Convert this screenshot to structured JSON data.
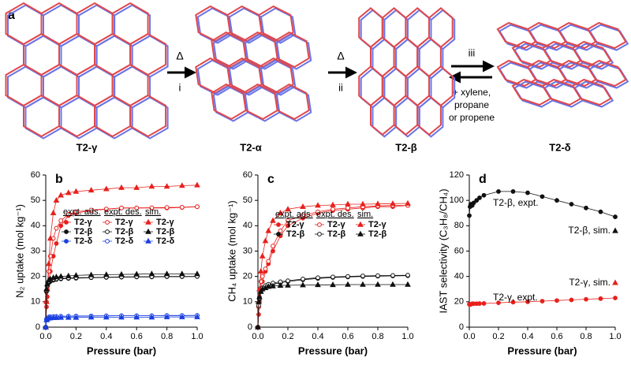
{
  "panel_a": {
    "letter": "a",
    "structures": [
      "T2-γ",
      "T2-α",
      "T2-β",
      "T2-δ"
    ],
    "step1": {
      "condition": "Δ",
      "label": "i"
    },
    "step2": {
      "condition": "Δ",
      "label": "ii"
    },
    "step3": {
      "label": "iii",
      "guests": [
        "+ xylene,",
        "propane",
        "or propene"
      ]
    }
  },
  "chart_data": [
    {
      "type": "line",
      "panel": "b",
      "x_label": "Pressure (bar)",
      "y_label": "N₂ uptake (mol kg⁻¹)",
      "xlim": [
        0,
        1
      ],
      "xticks": [
        {
          "value": 0,
          "label": "0.0"
        },
        0.2,
        0.4,
        0.6,
        0.8,
        {
          "value": 1,
          "label": "1.0"
        }
      ],
      "ylim": [
        0,
        60
      ],
      "yticks": [
        0,
        10,
        20,
        30,
        40,
        50,
        60
      ],
      "legend_headers": [
        "expt. ads.",
        "expt. des.",
        "sim."
      ],
      "x": [
        0,
        0.005,
        0.01,
        0.02,
        0.03,
        0.05,
        0.07,
        0.1,
        0.15,
        0.2,
        0.3,
        0.4,
        0.5,
        0.6,
        0.7,
        0.8,
        0.9,
        1.0
      ],
      "series": [
        {
          "name": "T2-γ",
          "color": "#e8201c",
          "marker": "circle",
          "filled": true,
          "values": [
            0,
            8,
            12,
            18,
            22,
            28,
            33,
            40,
            44,
            45,
            46,
            46.5,
            47,
            47,
            47,
            47,
            47.2,
            47.5
          ]
        },
        {
          "name": "T2-β",
          "color": "#111111",
          "marker": "circle",
          "filled": true,
          "values": [
            0,
            14,
            16,
            17.5,
            18,
            18.5,
            18.8,
            19,
            19.2,
            19.3,
            19.5,
            19.6,
            19.7,
            19.8,
            19.8,
            19.9,
            19.9,
            20
          ]
        },
        {
          "name": "T2-δ",
          "color": "#1a3fe0",
          "marker": "circle",
          "filled": true,
          "values": [
            0,
            3,
            3.5,
            4,
            4,
            4.1,
            4.2,
            4.2,
            4.3,
            4.3,
            4.4,
            4.4,
            4.5,
            4.5,
            4.5,
            4.5,
            4.5,
            4.6
          ]
        },
        {
          "name": "T2-γ",
          "color": "#e8201c",
          "marker": "circle",
          "filled": false,
          "values": [
            0,
            10,
            15,
            22,
            28,
            35,
            39,
            42,
            44.5,
            45.5,
            46.2,
            46.6,
            47,
            47,
            47.1,
            47.2,
            47.3,
            47.5
          ]
        },
        {
          "name": "T2-β",
          "color": "#111111",
          "marker": "circle",
          "filled": false,
          "values": [
            0,
            14.5,
            16.5,
            18,
            18.4,
            18.8,
            19,
            19.2,
            19.4,
            19.5,
            19.6,
            19.7,
            19.8,
            19.9,
            19.9,
            20,
            20,
            20
          ]
        },
        {
          "name": "T2-δ",
          "color": "#1a3fe0",
          "marker": "circle",
          "filled": false,
          "values": [
            0,
            3.2,
            3.6,
            4,
            4.1,
            4.2,
            4.2,
            4.3,
            4.3,
            4.4,
            4.4,
            4.5,
            4.5,
            4.5,
            4.5,
            4.6,
            4.6,
            4.6
          ]
        },
        {
          "name": "T2-γ",
          "color": "#e8201c",
          "marker": "triangle",
          "filled": true,
          "values": [
            0,
            10,
            15,
            25,
            35,
            45,
            50,
            52,
            53,
            53.5,
            54,
            54.5,
            55,
            55,
            55.5,
            55.5,
            55.8,
            56
          ]
        },
        {
          "name": "T2-β",
          "color": "#111111",
          "marker": "triangle",
          "filled": true,
          "values": [
            0,
            15,
            17,
            18.5,
            19,
            19.5,
            19.8,
            20,
            20.2,
            20.4,
            20.6,
            20.7,
            20.8,
            20.9,
            21,
            21,
            21,
            21
          ]
        },
        {
          "name": "T2-δ",
          "color": "#1a3fe0",
          "marker": "triangle",
          "filled": true,
          "values": [
            0,
            2.8,
            3.2,
            3.5,
            3.6,
            3.7,
            3.7,
            3.8,
            3.8,
            3.8,
            3.9,
            3.9,
            3.9,
            3.9,
            3.9,
            4,
            4,
            4
          ]
        }
      ]
    },
    {
      "type": "line",
      "panel": "c",
      "x_label": "Pressure (bar)",
      "y_label": "CH₄ uptake (mol kg⁻¹)",
      "xlim": [
        0,
        1
      ],
      "xticks": [
        {
          "value": 0,
          "label": "0.0"
        },
        0.2,
        0.4,
        0.6,
        0.8,
        {
          "value": 1,
          "label": "1.0"
        }
      ],
      "ylim": [
        0,
        60
      ],
      "yticks": [
        0,
        10,
        20,
        30,
        40,
        50,
        60
      ],
      "legend_headers": [
        "expt. ads.",
        "expt. des.",
        "sim."
      ],
      "x": [
        0,
        0.005,
        0.01,
        0.02,
        0.03,
        0.05,
        0.07,
        0.1,
        0.15,
        0.2,
        0.3,
        0.4,
        0.5,
        0.6,
        0.7,
        0.8,
        0.9,
        1.0
      ],
      "series": [
        {
          "name": "T2-γ",
          "color": "#e8201c",
          "marker": "circle",
          "filled": true,
          "values": [
            0,
            5,
            10,
            15,
            18,
            22,
            25,
            30,
            36,
            40,
            43,
            45,
            46,
            46.5,
            47,
            47.5,
            47.5,
            48
          ]
        },
        {
          "name": "T2-β",
          "color": "#111111",
          "marker": "circle",
          "filled": true,
          "values": [
            0,
            8,
            11,
            14,
            15,
            16,
            16.5,
            17,
            17.5,
            18,
            18.7,
            19.2,
            19.6,
            19.8,
            20,
            20.1,
            20.2,
            20.3
          ]
        },
        {
          "name": "T2-γ",
          "color": "#e8201c",
          "marker": "circle",
          "filled": false,
          "values": [
            0,
            8,
            12,
            18,
            20,
            23,
            26,
            32,
            38,
            42,
            44,
            45.5,
            46.5,
            47,
            47.5,
            47.8,
            48,
            48
          ]
        },
        {
          "name": "T2-β",
          "color": "#111111",
          "marker": "circle",
          "filled": false,
          "values": [
            0,
            8.5,
            11.5,
            14.5,
            15.5,
            16.4,
            16.9,
            17.4,
            17.9,
            18.3,
            19,
            19.5,
            19.8,
            20,
            20.2,
            20.3,
            20.4,
            20.5
          ]
        },
        {
          "name": "T2-γ",
          "color": "#e8201c",
          "marker": "triangle",
          "filled": true,
          "values": [
            0,
            10,
            15,
            22,
            28,
            34,
            38,
            42,
            45,
            46.5,
            47.5,
            48,
            48.2,
            48.5,
            48.5,
            48.6,
            48.7,
            48.8
          ]
        },
        {
          "name": "T2-β",
          "color": "#111111",
          "marker": "triangle",
          "filled": true,
          "values": [
            0,
            10,
            12,
            14,
            15,
            15.5,
            16,
            16.2,
            16.4,
            16.5,
            16.6,
            16.7,
            16.7,
            16.8,
            16.8,
            16.8,
            16.8,
            16.8
          ]
        }
      ]
    },
    {
      "type": "line",
      "panel": "d",
      "x_label": "Pressure (bar)",
      "y_label": "IAST selectivity (C₃H₈/CH₄)",
      "xlim": [
        0,
        1
      ],
      "xticks": [
        {
          "value": 0,
          "label": "0.0"
        },
        0.2,
        0.4,
        0.6,
        0.8,
        {
          "value": 1,
          "label": "1.0"
        }
      ],
      "ylim": [
        0,
        120
      ],
      "yticks": [
        0,
        20,
        40,
        60,
        80,
        100,
        120
      ],
      "series": [
        {
          "name": "T2-β, expt.",
          "color": "#111111",
          "marker": "circle",
          "filled": true,
          "x": [
            0,
            0.005,
            0.01,
            0.02,
            0.03,
            0.05,
            0.07,
            0.1,
            0.2,
            0.3,
            0.4,
            0.5,
            0.6,
            0.7,
            0.8,
            0.9,
            1.0
          ],
          "values": [
            88,
            95,
            97,
            96,
            98,
            100,
            102,
            104,
            107,
            107,
            106,
            103,
            100,
            97,
            94,
            91,
            87
          ]
        },
        {
          "name": "T2-γ, expt.",
          "color": "#e8201c",
          "marker": "circle",
          "filled": true,
          "x": [
            0,
            0.005,
            0.01,
            0.02,
            0.03,
            0.05,
            0.07,
            0.1,
            0.2,
            0.3,
            0.4,
            0.5,
            0.6,
            0.7,
            0.8,
            0.9,
            1.0
          ],
          "values": [
            18,
            18,
            18,
            18.5,
            18.5,
            18.5,
            18.6,
            18.7,
            19.2,
            19.7,
            20,
            20.5,
            21,
            21.5,
            22,
            22.5,
            23
          ]
        },
        {
          "name": "T2-β, sim.",
          "color": "#111111",
          "marker": "triangle",
          "filled": true,
          "x": [
            1.0
          ],
          "values": [
            76
          ]
        },
        {
          "name": "T2-γ, sim.",
          "color": "#e8201c",
          "marker": "triangle",
          "filled": true,
          "x": [
            1.0
          ],
          "values": [
            35
          ]
        }
      ]
    }
  ]
}
